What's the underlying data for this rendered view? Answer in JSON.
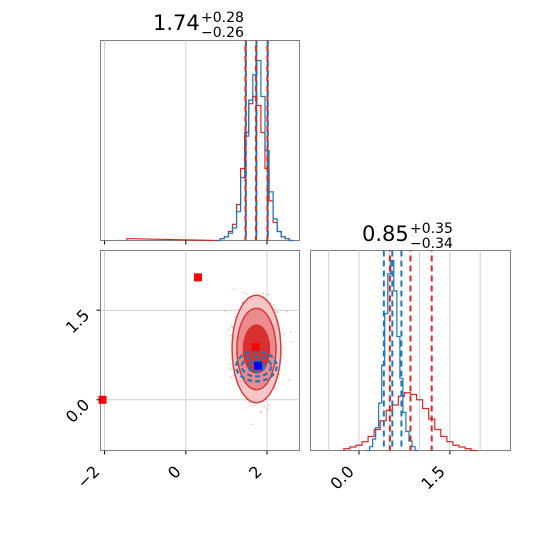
{
  "colors": {
    "series_a": "#1f77b4",
    "series_b": "#d62728",
    "truth_a": "#0000ff",
    "truth_b": "#ff0000",
    "frame": "#808080",
    "grid": "#d0d0d0"
  },
  "chart_data": [
    {
      "type": "histogram",
      "panel": "top-left",
      "title": {
        "value": "1.74",
        "plus": "+0.28",
        "minus": "−0.26"
      },
      "xlim": [
        -2.1,
        2.8
      ],
      "x_ticks": [
        -2,
        0,
        2
      ],
      "quantile_lines_a": [
        1.48,
        1.74,
        2.02
      ],
      "quantile_lines_b": [
        1.47,
        1.73,
        2.01
      ],
      "series": [
        {
          "name": "",
          "color": "#1f77b4",
          "bins": [
            [
              0.8,
              0.0
            ],
            [
              0.9,
              0.01
            ],
            [
              1.0,
              0.02
            ],
            [
              1.1,
              0.04
            ],
            [
              1.2,
              0.07
            ],
            [
              1.3,
              0.16
            ],
            [
              1.4,
              0.35
            ],
            [
              1.5,
              0.58
            ],
            [
              1.6,
              0.78
            ],
            [
              1.7,
              0.92
            ],
            [
              1.8,
              1.0
            ],
            [
              1.9,
              0.8
            ],
            [
              2.0,
              0.5
            ],
            [
              2.1,
              0.27
            ],
            [
              2.2,
              0.12
            ],
            [
              2.3,
              0.05
            ],
            [
              2.4,
              0.02
            ],
            [
              2.5,
              0.01
            ],
            [
              2.6,
              0.0
            ]
          ]
        },
        {
          "name": "",
          "color": "#d62728",
          "bins": [
            [
              -1.4,
              0.01
            ],
            [
              0.8,
              0.0
            ],
            [
              0.9,
              0.01
            ],
            [
              1.0,
              0.02
            ],
            [
              1.1,
              0.05
            ],
            [
              1.2,
              0.09
            ],
            [
              1.3,
              0.2
            ],
            [
              1.4,
              0.4
            ],
            [
              1.5,
              0.6
            ],
            [
              1.6,
              0.76
            ],
            [
              1.7,
              0.8
            ],
            [
              1.8,
              0.75
            ],
            [
              1.9,
              0.6
            ],
            [
              2.0,
              0.4
            ],
            [
              2.1,
              0.22
            ],
            [
              2.2,
              0.1
            ],
            [
              2.3,
              0.05
            ],
            [
              2.4,
              0.02
            ],
            [
              2.5,
              0.01
            ],
            [
              2.6,
              0.0
            ]
          ]
        }
      ]
    },
    {
      "type": "histogram",
      "panel": "bottom-right",
      "title": {
        "value": "0.85",
        "plus": "+0.35",
        "minus": "−0.34"
      },
      "xlim": [
        -0.8,
        2.5
      ],
      "x_ticks": [
        0.0,
        1.5
      ],
      "x_tick_labels": [
        "0.0",
        "1.5"
      ],
      "quantile_lines_a": [
        0.41,
        0.55,
        0.7
      ],
      "quantile_lines_b": [
        0.51,
        0.85,
        1.2
      ],
      "series": [
        {
          "name": "",
          "color": "#1f77b4",
          "bins": [
            [
              0.15,
              0.0
            ],
            [
              0.2,
              0.02
            ],
            [
              0.25,
              0.06
            ],
            [
              0.3,
              0.12
            ],
            [
              0.35,
              0.25
            ],
            [
              0.4,
              0.45
            ],
            [
              0.45,
              0.72
            ],
            [
              0.5,
              0.93
            ],
            [
              0.55,
              1.0
            ],
            [
              0.6,
              0.84
            ],
            [
              0.65,
              0.6
            ],
            [
              0.7,
              0.38
            ],
            [
              0.75,
              0.2
            ],
            [
              0.8,
              0.1
            ],
            [
              0.85,
              0.05
            ],
            [
              0.9,
              0.02
            ],
            [
              0.95,
              0.0
            ]
          ]
        },
        {
          "name": "",
          "color": "#d62728",
          "bins": [
            [
              -0.2,
              0.01
            ],
            [
              -0.1,
              0.02
            ],
            [
              0.0,
              0.03
            ],
            [
              0.1,
              0.05
            ],
            [
              0.2,
              0.08
            ],
            [
              0.3,
              0.12
            ],
            [
              0.4,
              0.17
            ],
            [
              0.5,
              0.23
            ],
            [
              0.6,
              0.26
            ],
            [
              0.7,
              0.31
            ],
            [
              0.8,
              0.33
            ],
            [
              0.9,
              0.32
            ],
            [
              1.0,
              0.29
            ],
            [
              1.1,
              0.24
            ],
            [
              1.2,
              0.18
            ],
            [
              1.3,
              0.12
            ],
            [
              1.4,
              0.08
            ],
            [
              1.5,
              0.05
            ],
            [
              1.6,
              0.03
            ],
            [
              1.7,
              0.02
            ],
            [
              1.8,
              0.01
            ],
            [
              1.9,
              0.0
            ]
          ]
        }
      ]
    },
    {
      "type": "contour",
      "panel": "bottom-left",
      "xlim": [
        -2.1,
        2.8
      ],
      "ylim": [
        -0.85,
        2.5
      ],
      "x_ticks": [
        -2,
        0,
        2
      ],
      "y_ticks": [
        0.0,
        1.5
      ],
      "y_tick_labels": [
        "0.0",
        "1.5"
      ],
      "series": [
        {
          "name": "",
          "color": "#d62728",
          "center": [
            1.74,
            0.85
          ],
          "levels": [
            {
              "sx": 0.32,
              "sy": 0.4
            },
            {
              "sx": 0.48,
              "sy": 0.68
            },
            {
              "sx": 0.6,
              "sy": 0.9
            }
          ]
        },
        {
          "name": "",
          "color": "#1f77b4",
          "center": [
            1.74,
            0.56
          ],
          "levels": [
            {
              "sx": 0.2,
              "sy": 0.1
            },
            {
              "sx": 0.36,
              "sy": 0.17
            },
            {
              "sx": 0.5,
              "sy": 0.25
            }
          ]
        }
      ],
      "truth_markers": [
        {
          "x": 0.3,
          "y": 2.05,
          "color": "#ff0000"
        },
        {
          "x": 1.72,
          "y": 0.88,
          "color": "#ff0000"
        },
        {
          "x": 1.78,
          "y": 0.57,
          "color": "#0000ff"
        },
        {
          "x": -2.05,
          "y": 0.0,
          "color": "#ff0000"
        }
      ]
    }
  ]
}
